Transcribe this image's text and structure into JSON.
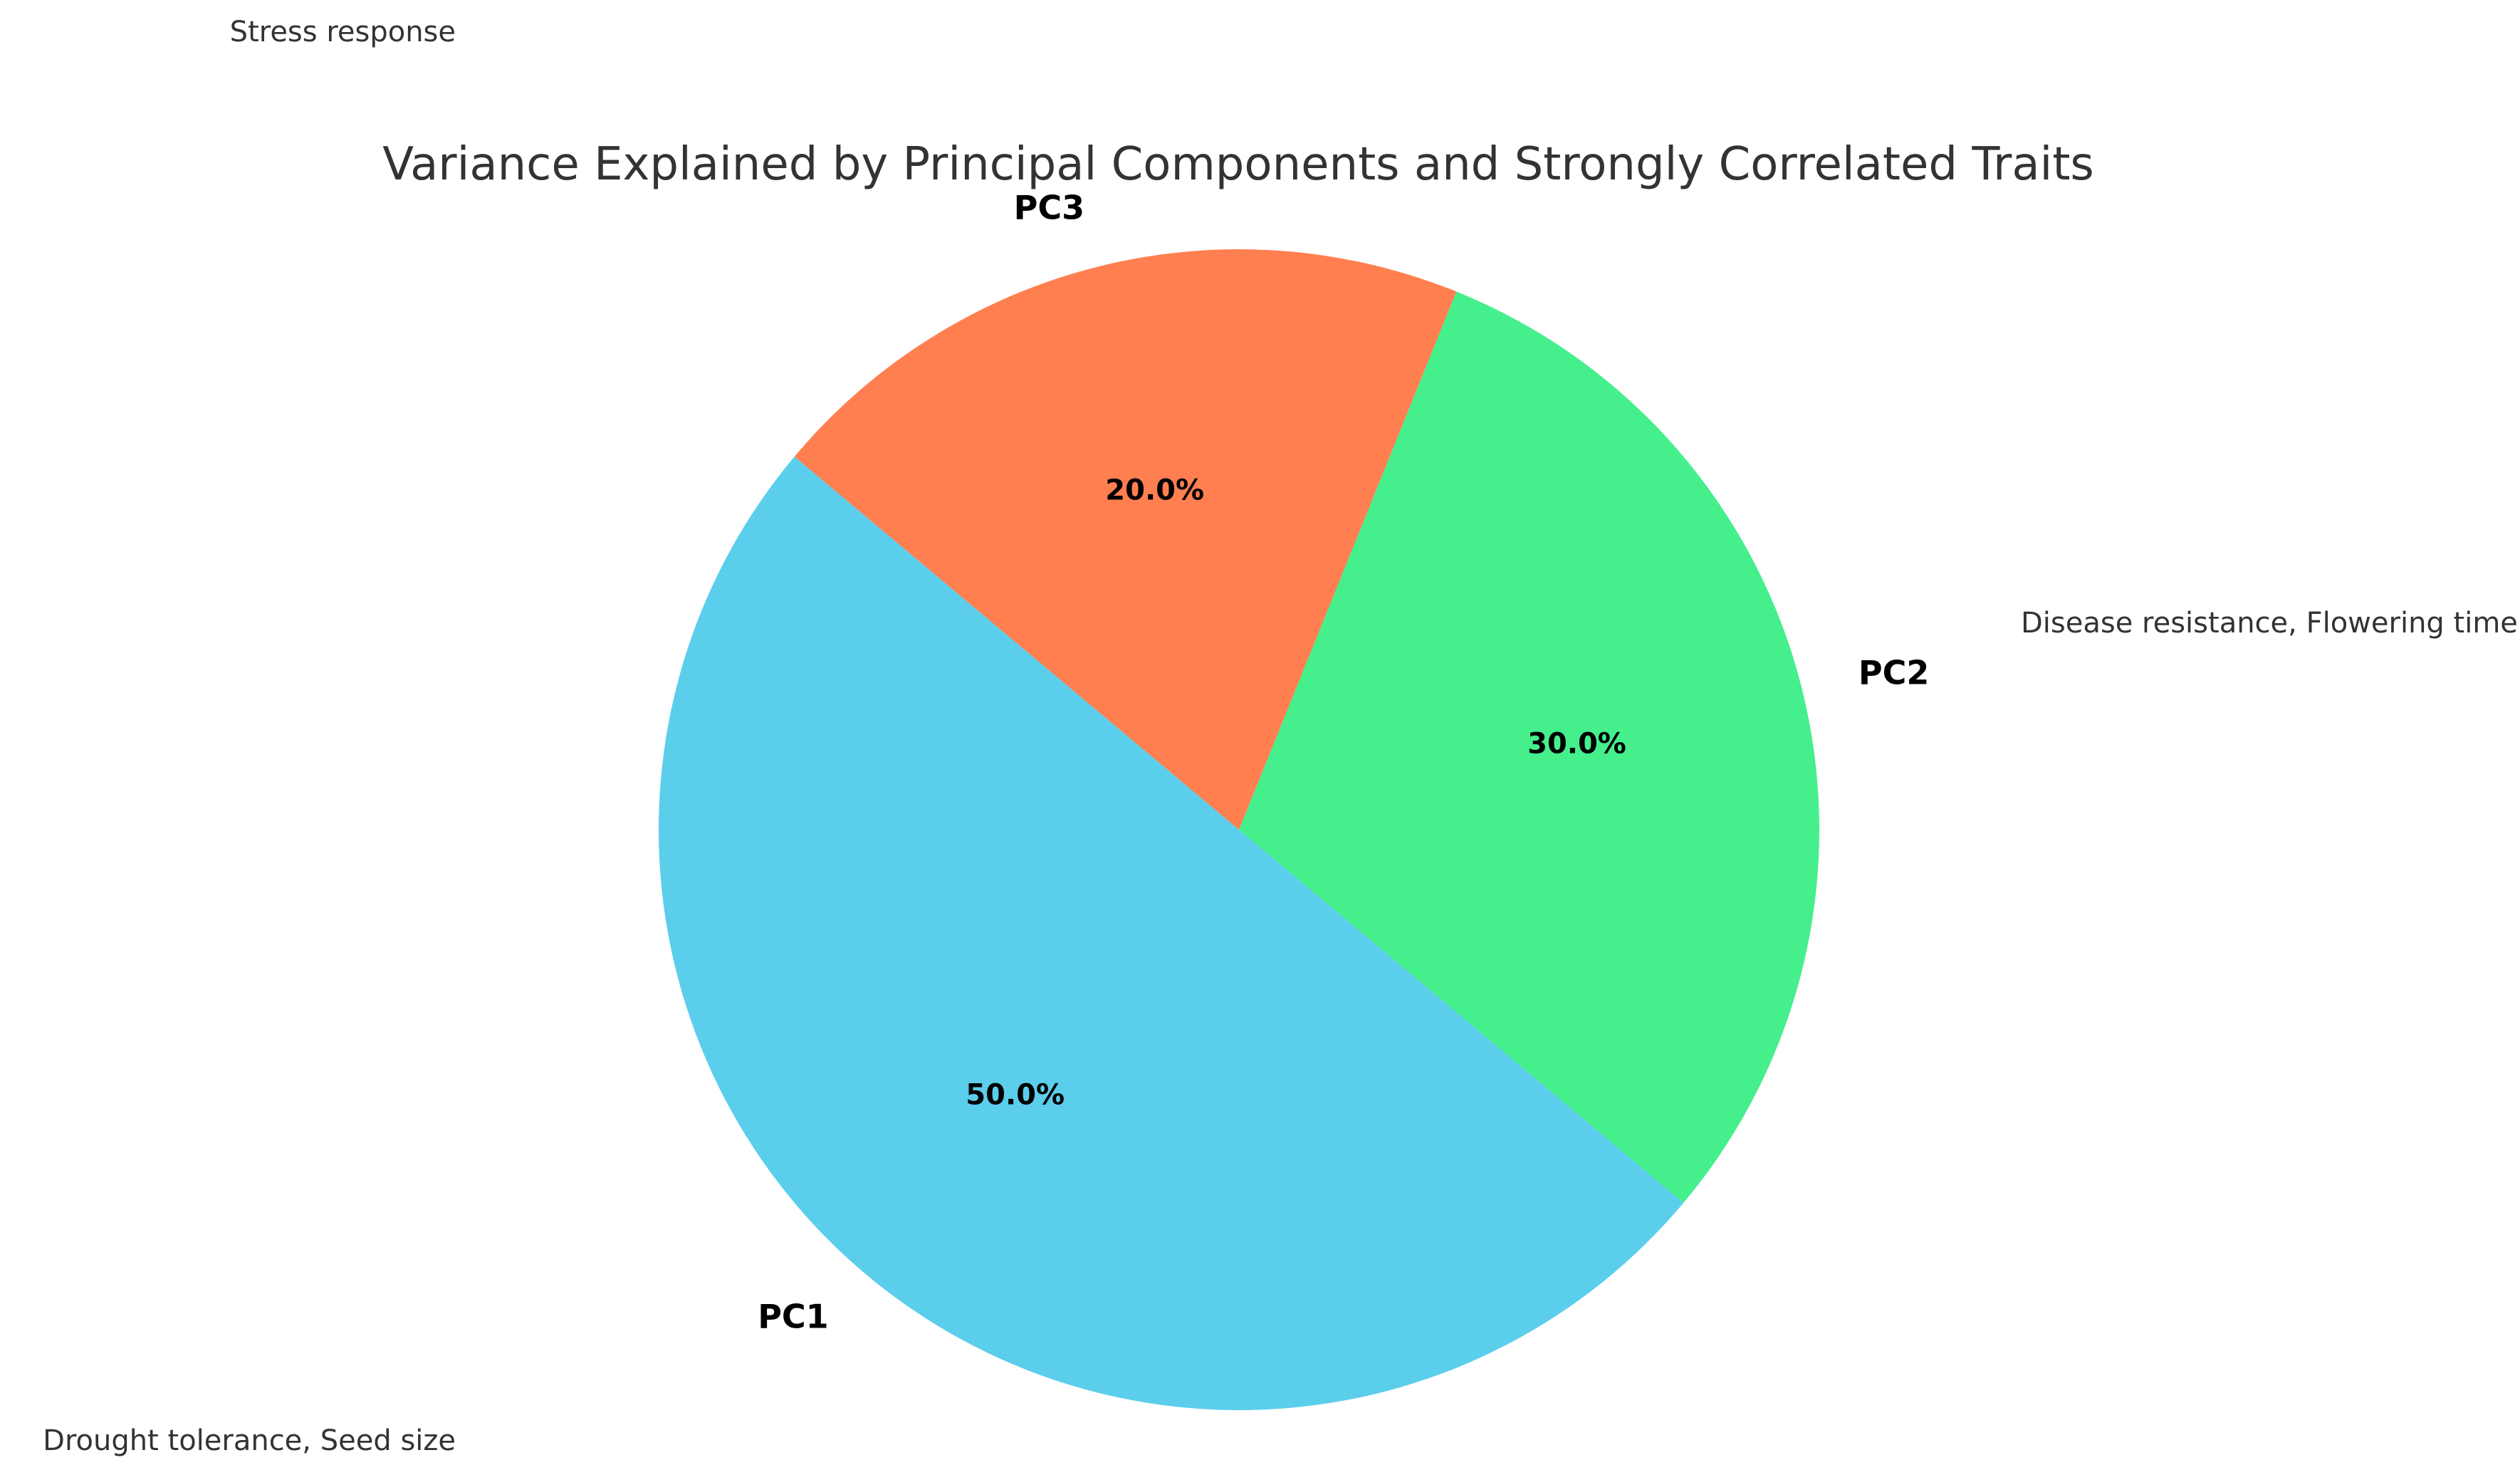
{
  "chart_data": {
    "type": "pie",
    "title": "Variance Explained by Principal Components and Strongly Correlated Traits",
    "start_angle_deg": 140,
    "direction": "counterclockwise",
    "slices": [
      {
        "label": "PC1",
        "value": 50.0,
        "pct_label": "50.0%",
        "color": "#5BCEEC",
        "traits": "Drought tolerance, Seed size"
      },
      {
        "label": "PC2",
        "value": 30.0,
        "pct_label": "30.0%",
        "color": "#45EF8C",
        "traits": "Disease resistance, Flowering time"
      },
      {
        "label": "PC3",
        "value": 20.0,
        "pct_label": "20.0%",
        "color": "#FF7F50",
        "traits": "Stress response"
      }
    ]
  }
}
